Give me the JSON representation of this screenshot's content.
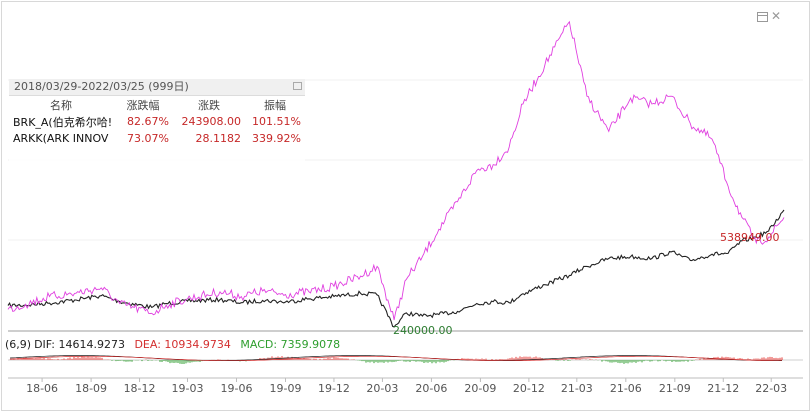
{
  "stats_panel": {
    "header": "2018/03/29-2022/03/25 (999日)",
    "columns": [
      "名称",
      "涨跌幅",
      "涨跌",
      "振幅"
    ],
    "rows": [
      {
        "name": "BRK_A(伯克希尔哈!",
        "pct_change": "82.67%",
        "change": "243908.00",
        "amplitude": "101.51%"
      },
      {
        "name": "ARKK(ARK INNOV",
        "pct_change": "73.07%",
        "change": "28.1182",
        "amplitude": "339.92%"
      }
    ]
  },
  "macd_legend": {
    "prefix": "(6,9)",
    "dif": "DIF: 14614.9273",
    "dea": "DEA: 10934.9734",
    "macd": "MACD: 7359.9078"
  },
  "colors": {
    "brk": "#222222",
    "arkk": "#e040e0",
    "price_label": "#c62828",
    "low_label": "#2e7d32",
    "dif": "#222222",
    "dea": "#d32f2f",
    "macd": "#2e9e2e"
  },
  "chart_data": {
    "type": "line",
    "x_tick_labels": [
      "18-06",
      "18-09",
      "18-12",
      "19-03",
      "19-06",
      "19-09",
      "19-12",
      "20-03",
      "20-06",
      "20-09",
      "20-12",
      "21-03",
      "21-06",
      "21-09",
      "21-12",
      "22-03"
    ],
    "annotations": {
      "high_label": "538949.00",
      "low_label": "240000.00"
    },
    "series": [
      {
        "values": [
          [
            "2018-03-29",
            295000
          ],
          [
            "2018-05-01",
            296000
          ],
          [
            "2018-06-15",
            301000
          ],
          [
            "2018-08-01",
            309000
          ],
          [
            "2018-09-20",
            320000
          ],
          [
            "2018-10-25",
            305000
          ],
          [
            "2018-12-24",
            290000
          ],
          [
            "2019-01-20",
            300000
          ],
          [
            "2019-03-01",
            306000
          ],
          [
            "2019-05-01",
            310000
          ],
          [
            "2019-06-10",
            302000
          ],
          [
            "2019-07-20",
            308000
          ],
          [
            "2019-09-01",
            304000
          ],
          [
            "2019-10-15",
            312000
          ],
          [
            "2019-12-01",
            318000
          ],
          [
            "2020-01-20",
            326000
          ],
          [
            "2020-02-20",
            322000
          ],
          [
            "2020-03-23",
            240000
          ],
          [
            "2020-04-15",
            276000
          ],
          [
            "2020-05-15",
            268000
          ],
          [
            "2020-06-15",
            272000
          ],
          [
            "2020-07-20",
            280000
          ],
          [
            "2020-08-25",
            300000
          ],
          [
            "2020-09-25",
            305000
          ],
          [
            "2020-10-25",
            302000
          ],
          [
            "2020-11-20",
            325000
          ],
          [
            "2020-12-31",
            348000
          ],
          [
            "2021-02-15",
            372000
          ],
          [
            "2021-03-20",
            395000
          ],
          [
            "2021-04-30",
            415000
          ],
          [
            "2021-06-10",
            420000
          ],
          [
            "2021-07-20",
            415000
          ],
          [
            "2021-08-25",
            432000
          ],
          [
            "2021-09-30",
            410000
          ],
          [
            "2021-11-10",
            426000
          ],
          [
            "2021-12-10",
            428000
          ],
          [
            "2022-01-05",
            460000
          ],
          [
            "2022-02-01",
            470000
          ],
          [
            "2022-02-24",
            485000
          ],
          [
            "2022-03-25",
            538949
          ]
        ]
      },
      {
        "values": [
          [
            "2018-03-29",
            285000
          ],
          [
            "2018-05-01",
            298000
          ],
          [
            "2018-06-15",
            318000
          ],
          [
            "2018-08-01",
            326000
          ],
          [
            "2018-09-20",
            340000
          ],
          [
            "2018-10-25",
            300000
          ],
          [
            "2018-12-24",
            275000
          ],
          [
            "2019-01-20",
            296000
          ],
          [
            "2019-03-01",
            312000
          ],
          [
            "2019-05-01",
            330000
          ],
          [
            "2019-06-10",
            318000
          ],
          [
            "2019-07-20",
            332000
          ],
          [
            "2019-09-01",
            323000
          ],
          [
            "2019-10-15",
            330000
          ],
          [
            "2019-12-01",
            344000
          ],
          [
            "2020-01-20",
            370000
          ],
          [
            "2020-02-20",
            395000
          ],
          [
            "2020-03-23",
            258000
          ],
          [
            "2020-04-15",
            362000
          ],
          [
            "2020-05-15",
            420000
          ],
          [
            "2020-06-15",
            490000
          ],
          [
            "2020-07-20",
            560000
          ],
          [
            "2020-08-25",
            640000
          ],
          [
            "2020-09-25",
            655000
          ],
          [
            "2020-10-25",
            700000
          ],
          [
            "2020-11-20",
            810000
          ],
          [
            "2020-12-31",
            910000
          ],
          [
            "2021-02-15",
            1020000
          ],
          [
            "2021-03-20",
            830000
          ],
          [
            "2021-04-30",
            740000
          ],
          [
            "2021-06-10",
            825000
          ],
          [
            "2021-07-20",
            810000
          ],
          [
            "2021-08-25",
            830000
          ],
          [
            "2021-09-30",
            760000
          ],
          [
            "2021-11-10",
            720000
          ],
          [
            "2021-12-10",
            600000
          ],
          [
            "2022-01-05",
            520000
          ],
          [
            "2022-02-01",
            455000
          ],
          [
            "2022-02-24",
            470000
          ],
          [
            "2022-03-25",
            520000
          ]
        ]
      }
    ]
  }
}
